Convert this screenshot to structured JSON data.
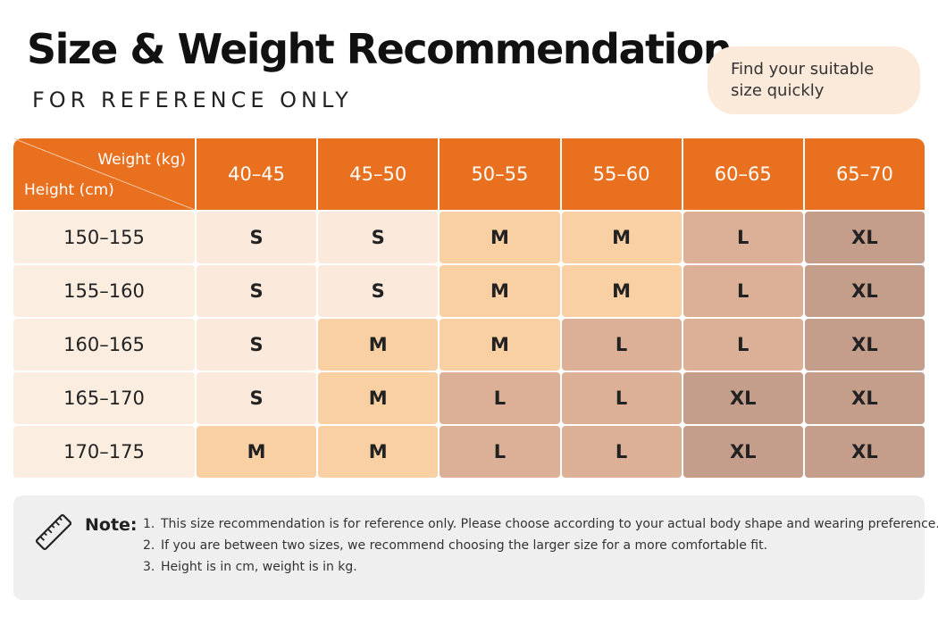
{
  "header": {
    "title": "Size & Weight Recommendation",
    "subtitle": "FOR REFERENCE ONLY",
    "badge": "Find your suitable size quickly"
  },
  "table": {
    "corner_top": "Weight (kg)",
    "corner_bottom": "Height (cm)",
    "columns": [
      "40–45",
      "45–50",
      "50–55",
      "55–60",
      "60–65",
      "65–70"
    ],
    "rows": [
      {
        "height": "150–155",
        "sizes": [
          "S",
          "S",
          "M",
          "M",
          "L",
          "XL"
        ]
      },
      {
        "height": "155–160",
        "sizes": [
          "S",
          "S",
          "M",
          "M",
          "L",
          "XL"
        ]
      },
      {
        "height": "160–165",
        "sizes": [
          "S",
          "M",
          "M",
          "L",
          "L",
          "XL"
        ]
      },
      {
        "height": "165–170",
        "sizes": [
          "S",
          "M",
          "L",
          "L",
          "XL",
          "XL"
        ]
      },
      {
        "height": "170–175",
        "sizes": [
          "M",
          "M",
          "L",
          "L",
          "XL",
          "XL"
        ]
      }
    ]
  },
  "note": {
    "label": "Note:",
    "items": [
      {
        "number": "1.",
        "text": "This size recommendation is for reference only. Please choose according to your actual body shape and wearing preference."
      },
      {
        "number": "2.",
        "text": "If you are between two sizes, we recommend choosing the larger size for a more comfortable fit."
      },
      {
        "number": "3.",
        "text": "Height is in cm, weight is in kg."
      }
    ]
  }
}
